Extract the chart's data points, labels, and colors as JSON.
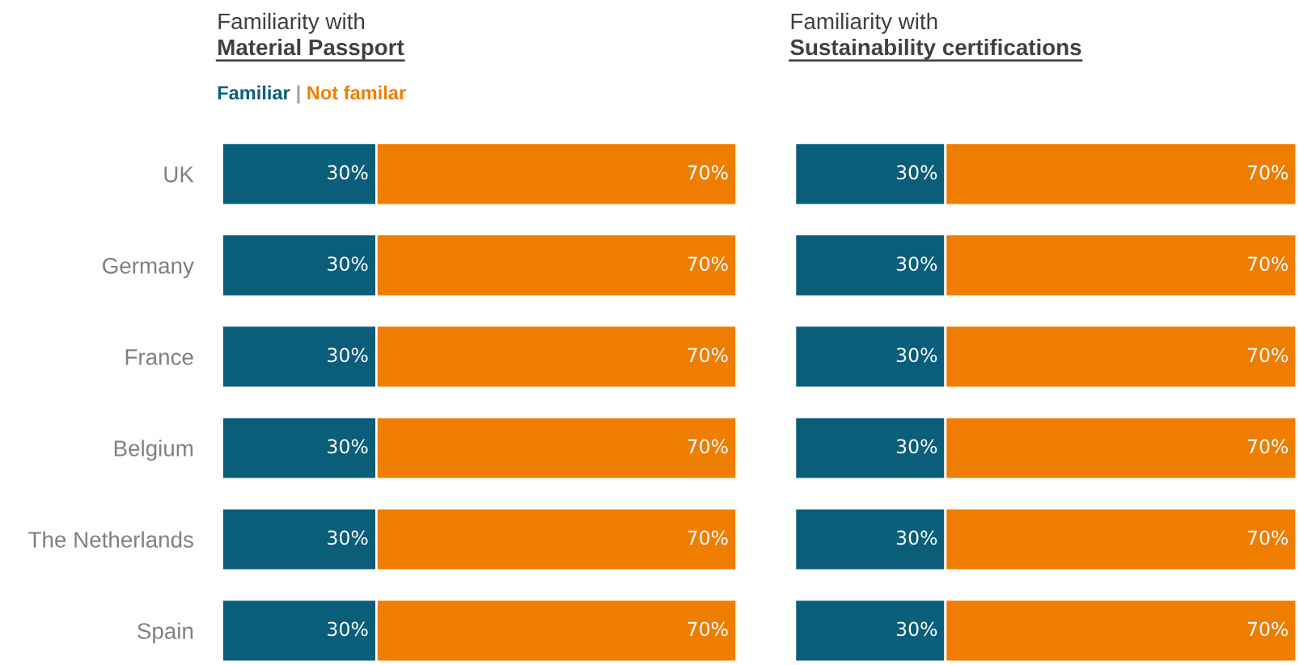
{
  "chart_data": [
    {
      "type": "bar",
      "orientation": "horizontal",
      "stacked": true,
      "title": "Familiarity with",
      "subtitle": "Material Passport",
      "legend": "top left",
      "tick_labels": "y",
      "annotations": [
        "|"
      ],
      "categories": [
        "UK",
        "Germany",
        "France",
        "Belgium",
        "The Netherlands",
        "Spain"
      ],
      "series": [
        {
          "name": "Familiar",
          "color": "#0b5e7a",
          "values": [
            30,
            30,
            30,
            30,
            30,
            30
          ],
          "value_labels": [
            "30%",
            "30%",
            "30%",
            "30%",
            "30%",
            "30%"
          ]
        },
        {
          "name": "Not familar",
          "color": "#ef7d00",
          "values": [
            70,
            70,
            70,
            70,
            70,
            70
          ],
          "value_labels": [
            "70%",
            "70%",
            "70%",
            "70%",
            "70%",
            "70%"
          ]
        }
      ]
    },
    {
      "type": "bar",
      "orientation": "horizontal",
      "stacked": true,
      "title": "Familiarity with",
      "subtitle": "Sustainability certifications",
      "tick_labels": false,
      "categories": [
        null,
        null,
        null,
        null,
        null,
        null
      ],
      "series": [
        {
          "color": "#0b5e7a",
          "values": [
            30,
            30,
            30,
            30,
            30,
            30
          ],
          "value_labels": [
            "30%",
            "30%",
            "30%",
            "30%",
            "30%",
            "30%"
          ]
        },
        {
          "color": "#ef7d00",
          "values": [
            70,
            70,
            70,
            70,
            70,
            70
          ],
          "value_labels": [
            "70%",
            "70%",
            "70%",
            "70%",
            "70%",
            "70%"
          ]
        }
      ]
    }
  ]
}
